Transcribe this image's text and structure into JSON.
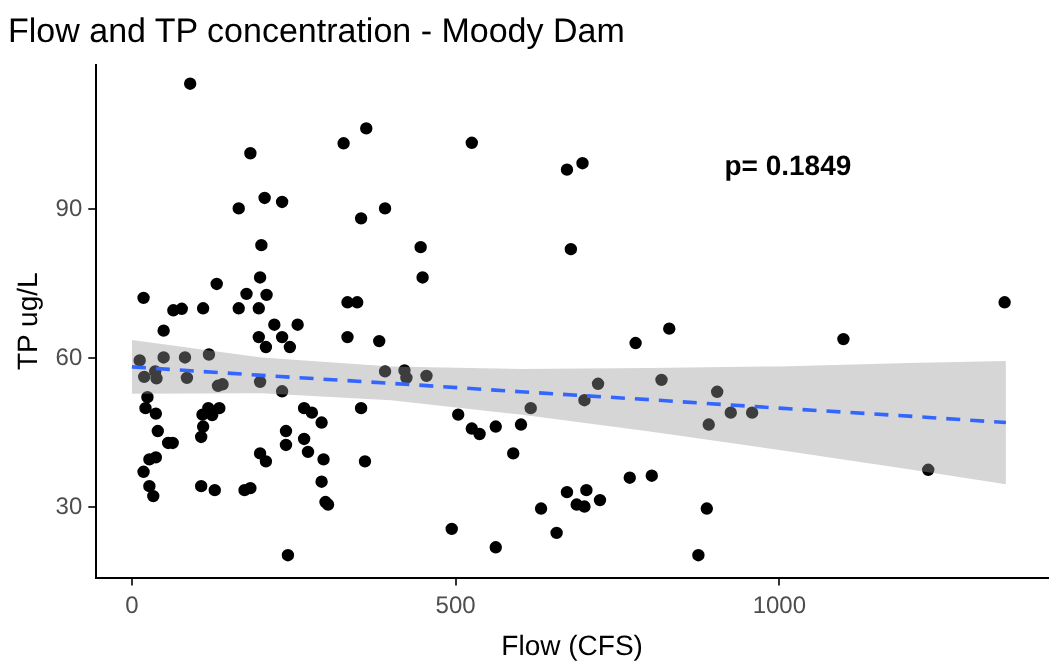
{
  "chart_data": {
    "type": "scatter",
    "title": "Flow and TP concentration - Moody Dam",
    "xlabel": "Flow (CFS)",
    "ylabel": "TP ug/L",
    "xlim": [
      -55,
      1415
    ],
    "xticks": [
      0,
      500,
      1000
    ],
    "ylim": [
      15.8,
      119
    ],
    "yticks": [
      30,
      60,
      90
    ],
    "grid": false,
    "legend": false,
    "annotations": [
      "p= 0.1849"
    ],
    "series": [
      {
        "color": "#000000",
        "marker": "circle",
        "x": [
          90,
          183,
          165,
          205,
          232,
          18,
          200,
          131,
          177,
          208,
          198,
          165,
          196,
          64,
          77,
          110,
          49,
          220,
          256,
          196,
          232,
          207,
          244,
          12,
          49,
          82,
          119,
          19,
          36,
          38,
          85,
          133,
          140,
          198,
          232,
          24,
          21,
          37,
          109,
          118,
          124,
          135,
          266,
          278,
          40,
          110,
          238,
          293,
          56,
          63,
          107,
          238,
          266,
          272,
          198,
          207,
          27,
          37,
          296,
          18,
          27,
          33,
          107,
          128,
          174,
          183,
          293,
          299,
          303,
          241,
          327,
          362,
          333,
          348,
          333,
          354,
          354,
          360,
          525,
          672,
          696,
          391,
          446,
          449,
          678,
          382,
          778,
          830,
          391,
          421,
          424,
          455,
          720,
          818,
          699,
          616,
          504,
          525,
          537,
          562,
          601,
          589,
          769,
          803,
          672,
          702,
          723,
          687,
          699,
          632,
          494,
          656,
          562,
          875,
          1348,
          1099,
          904,
          891,
          925,
          958,
          1230,
          888
        ],
        "values": [
          115.2,
          101.2,
          90.1,
          92.2,
          91.4,
          72.1,
          82.7,
          74.9,
          72.9,
          72.7,
          76.2,
          70,
          70,
          69.6,
          69.9,
          70,
          65.5,
          66.7,
          66.7,
          64.2,
          64.2,
          62.2,
          62.2,
          59.5,
          60.1,
          60.1,
          60.7,
          56.2,
          57.3,
          55.9,
          56,
          54.4,
          54.7,
          55.2,
          53.3,
          52.1,
          49.9,
          48.8,
          48.6,
          49.9,
          48.5,
          49.9,
          49.9,
          49,
          45.3,
          46.2,
          45.3,
          47,
          42.9,
          42.9,
          44.1,
          42.5,
          43.7,
          41.1,
          40.8,
          39.2,
          39.6,
          40,
          39.6,
          37.1,
          34.2,
          32.2,
          34.2,
          33.4,
          33.4,
          33.8,
          35.1,
          31,
          30.5,
          20.3,
          103.2,
          106.2,
          71.2,
          71.2,
          64.2,
          88.1,
          49.9,
          39.2,
          103.3,
          97.9,
          99.2,
          90.1,
          82.3,
          76.2,
          81.9,
          63.4,
          63,
          65.9,
          57.3,
          57.5,
          56,
          56.4,
          54.8,
          55.6,
          51.5,
          49.9,
          48.6,
          45.8,
          44.7,
          46.2,
          46.6,
          40.8,
          35.9,
          36.3,
          33,
          33.4,
          31.4,
          30.5,
          30.1,
          29.7,
          25.6,
          24.8,
          21.9,
          20.3,
          71.2,
          63.8,
          53.2,
          46.6,
          49,
          49,
          37.5,
          29.7
        ]
      },
      {
        "type": "line",
        "color": "#3366ff",
        "marker": "none",
        "line_style": "dashed",
        "x": [
          0,
          200,
          400,
          600,
          800,
          1000,
          1200,
          1350
        ],
        "values": [
          58.2,
          56.5,
          54.9,
          53.2,
          51.6,
          49.9,
          48.3,
          47.0
        ],
        "lower": [
          52.8,
          52.9,
          51.5,
          48.6,
          45.2,
          41.5,
          37.6,
          34.6
        ],
        "upper": [
          63.6,
          60.1,
          58.3,
          57.8,
          58.0,
          58.3,
          59.0,
          59.4
        ]
      }
    ]
  }
}
